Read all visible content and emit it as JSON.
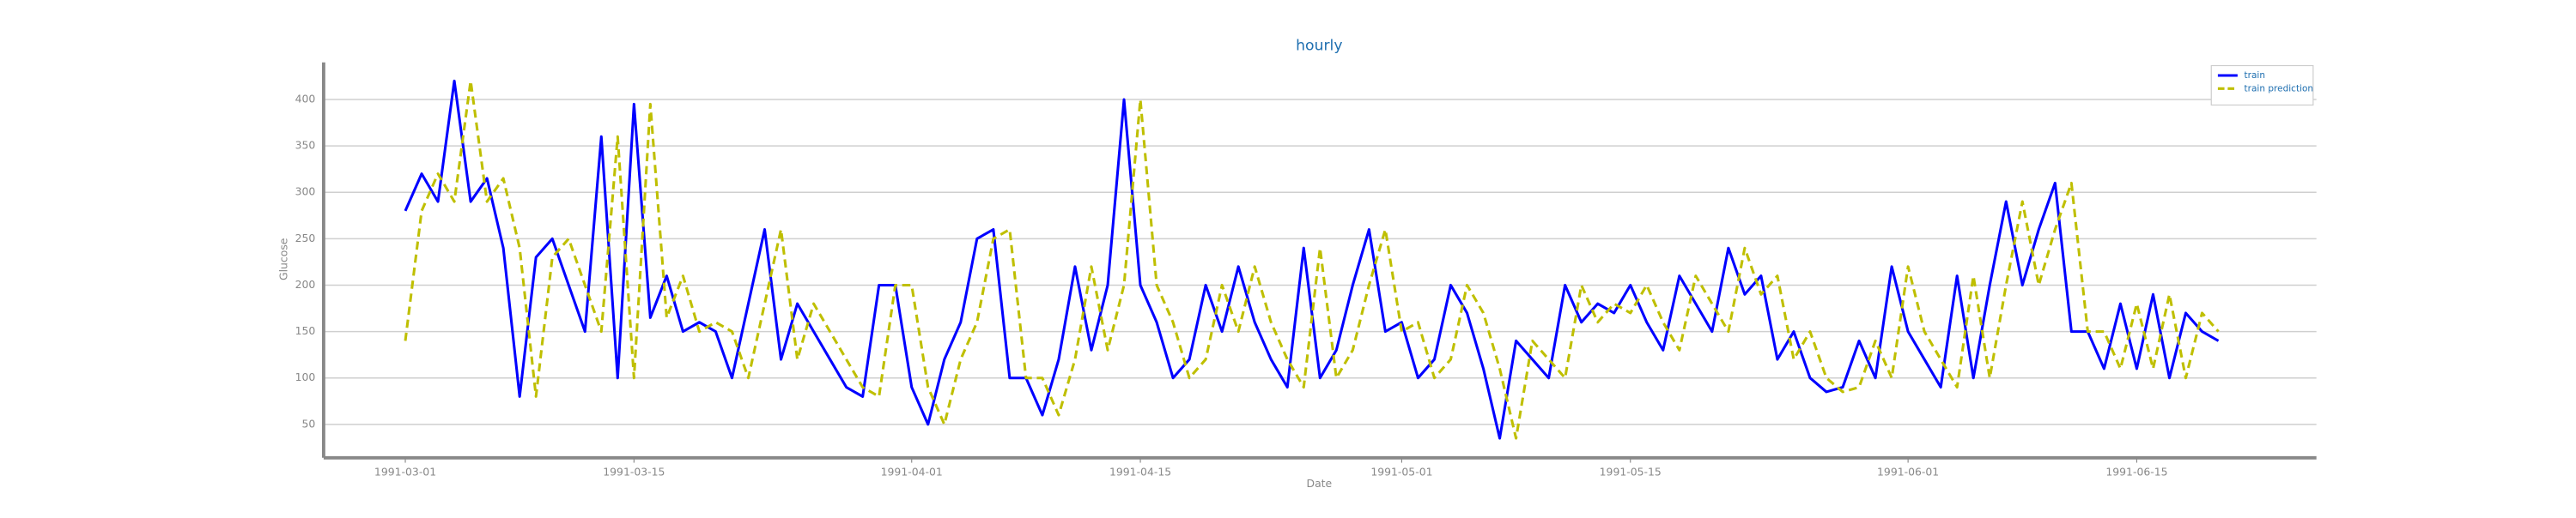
{
  "chart_data": {
    "type": "line",
    "title": "hourly",
    "xlabel": "Date",
    "ylabel": "Glucose",
    "x": [
      "1991-03-01",
      "1991-03-02",
      "1991-03-03",
      "1991-03-04",
      "1991-03-05",
      "1991-03-06",
      "1991-03-07",
      "1991-03-08",
      "1991-03-09",
      "1991-03-10",
      "1991-03-11",
      "1991-03-12",
      "1991-03-13",
      "1991-03-14",
      "1991-03-15",
      "1991-03-16",
      "1991-03-17",
      "1991-03-18",
      "1991-03-19",
      "1991-03-20",
      "1991-03-21",
      "1991-03-22",
      "1991-03-23",
      "1991-03-24",
      "1991-03-25",
      "1991-03-26",
      "1991-03-27",
      "1991-03-28",
      "1991-03-29",
      "1991-03-30",
      "1991-03-31",
      "1991-04-01",
      "1991-04-02",
      "1991-04-03",
      "1991-04-04",
      "1991-04-05",
      "1991-04-06",
      "1991-04-07",
      "1991-04-08",
      "1991-04-09",
      "1991-04-10",
      "1991-04-11",
      "1991-04-12",
      "1991-04-13",
      "1991-04-14",
      "1991-04-15",
      "1991-04-16",
      "1991-04-17",
      "1991-04-18",
      "1991-04-19",
      "1991-04-20",
      "1991-04-21",
      "1991-04-22",
      "1991-04-23",
      "1991-04-24",
      "1991-04-25",
      "1991-04-26",
      "1991-04-27",
      "1991-04-28",
      "1991-04-29",
      "1991-04-30",
      "1991-05-01",
      "1991-05-02",
      "1991-05-03",
      "1991-05-04",
      "1991-05-05",
      "1991-05-06",
      "1991-05-07",
      "1991-05-08",
      "1991-05-09",
      "1991-05-10",
      "1991-05-11",
      "1991-05-12",
      "1991-05-13",
      "1991-05-14",
      "1991-05-15",
      "1991-05-16",
      "1991-05-17",
      "1991-05-18",
      "1991-05-19",
      "1991-05-20",
      "1991-05-21",
      "1991-05-22",
      "1991-05-23",
      "1991-05-24",
      "1991-05-25",
      "1991-05-26",
      "1991-05-27",
      "1991-05-28",
      "1991-05-29",
      "1991-05-30",
      "1991-05-31",
      "1991-06-01",
      "1991-06-02",
      "1991-06-03",
      "1991-06-04",
      "1991-06-05",
      "1991-06-06",
      "1991-06-07",
      "1991-06-08",
      "1991-06-09",
      "1991-06-10",
      "1991-06-11",
      "1991-06-12",
      "1991-06-13",
      "1991-06-14",
      "1991-06-15",
      "1991-06-16",
      "1991-06-17",
      "1991-06-18",
      "1991-06-19",
      "1991-06-20"
    ],
    "series": [
      {
        "name": "train",
        "color": "#0000ff",
        "dashed": false,
        "values": [
          280,
          320,
          290,
          420,
          290,
          315,
          240,
          80,
          230,
          250,
          200,
          150,
          360,
          100,
          395,
          165,
          210,
          150,
          160,
          150,
          100,
          180,
          260,
          120,
          180,
          150,
          120,
          90,
          80,
          200,
          200,
          90,
          50,
          120,
          160,
          250,
          260,
          100,
          100,
          60,
          120,
          220,
          130,
          200,
          400,
          200,
          160,
          100,
          120,
          200,
          150,
          220,
          160,
          120,
          90,
          240,
          100,
          130,
          200,
          260,
          150,
          160,
          100,
          120,
          200,
          170,
          110,
          35,
          140,
          120,
          100,
          200,
          160,
          180,
          170,
          200,
          160,
          130,
          210,
          180,
          150,
          240,
          190,
          210,
          120,
          150,
          100,
          85,
          90,
          140,
          100,
          220,
          150,
          120,
          90,
          210,
          100,
          200,
          290,
          200,
          260,
          310,
          150,
          150,
          110,
          180,
          110,
          190,
          100,
          170,
          150,
          140
        ]
      },
      {
        "name": "train prediction",
        "color": "#bfbf00",
        "dashed": true,
        "values": [
          140,
          280,
          320,
          290,
          420,
          290,
          315,
          240,
          80,
          230,
          250,
          200,
          150,
          360,
          100,
          395,
          165,
          210,
          150,
          160,
          150,
          100,
          180,
          260,
          120,
          180,
          150,
          120,
          90,
          80,
          200,
          200,
          90,
          50,
          120,
          160,
          250,
          260,
          100,
          100,
          60,
          120,
          220,
          130,
          200,
          400,
          200,
          160,
          100,
          120,
          200,
          150,
          220,
          160,
          120,
          90,
          240,
          100,
          130,
          200,
          260,
          150,
          160,
          100,
          120,
          200,
          170,
          110,
          35,
          140,
          120,
          100,
          200,
          160,
          180,
          170,
          200,
          160,
          130,
          210,
          180,
          150,
          240,
          190,
          210,
          120,
          150,
          100,
          85,
          90,
          140,
          100,
          220,
          150,
          120,
          90,
          210,
          100,
          200,
          290,
          200,
          260,
          310,
          150,
          150,
          110,
          180,
          110,
          190,
          100,
          170,
          150
        ]
      }
    ],
    "xlim": [
      "1991-02-24",
      "1991-06-26"
    ],
    "xticks": [
      "1991-03-01",
      "1991-03-15",
      "1991-04-01",
      "1991-04-15",
      "1991-05-01",
      "1991-05-15",
      "1991-06-01",
      "1991-06-15"
    ],
    "ylim": [
      14,
      440
    ],
    "yticks": [
      50,
      100,
      150,
      200,
      250,
      300,
      350,
      400
    ],
    "grid": true,
    "legend": "upper right"
  }
}
